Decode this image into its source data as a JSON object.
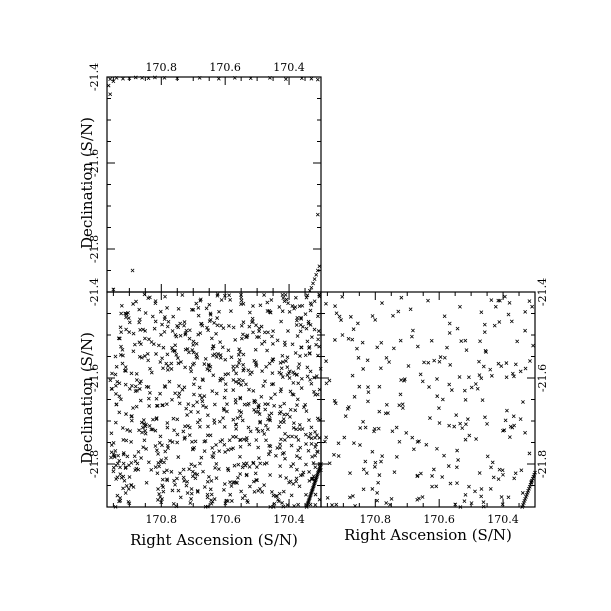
{
  "chart_data": [
    {
      "type": "scatter",
      "panel": "top-left",
      "xlim": [
        170.97,
        170.3
      ],
      "ylim": [
        -21.4,
        -21.9
      ],
      "xticks": [
        170.8,
        170.6,
        170.4
      ],
      "yticks": [
        -21.4,
        -21.6,
        -21.8
      ],
      "xtick_labels_shown": [
        "170.8",
        "170.6",
        "170.4"
      ],
      "ytick_labels_shown": [
        "-21.4",
        "-21.6",
        "-21.8"
      ],
      "xlabel": "",
      "ylabel": "Declination (S/N)",
      "marker": "x",
      "points": [
        [
          170.96,
          -21.405
        ],
        [
          170.95,
          -21.41
        ],
        [
          170.94,
          -21.402
        ],
        [
          170.92,
          -21.404
        ],
        [
          170.9,
          -21.403
        ],
        [
          170.88,
          -21.401
        ],
        [
          170.86,
          -21.402
        ],
        [
          170.84,
          -21.403
        ],
        [
          170.82,
          -21.401
        ],
        [
          170.79,
          -21.402
        ],
        [
          170.75,
          -21.403
        ],
        [
          170.68,
          -21.402
        ],
        [
          170.62,
          -21.404
        ],
        [
          170.57,
          -21.402
        ],
        [
          170.52,
          -21.403
        ],
        [
          170.46,
          -21.402
        ],
        [
          170.41,
          -21.405
        ],
        [
          170.36,
          -21.403
        ],
        [
          170.33,
          -21.404
        ],
        [
          170.31,
          -21.406
        ],
        [
          170.965,
          -21.42
        ],
        [
          170.96,
          -21.44
        ],
        [
          170.31,
          -21.72
        ],
        [
          170.89,
          -21.85
        ],
        [
          170.95,
          -21.894
        ],
        [
          170.31,
          -21.85
        ],
        [
          170.315,
          -21.86
        ],
        [
          170.32,
          -21.87
        ],
        [
          170.325,
          -21.88
        ],
        [
          170.33,
          -21.89
        ],
        [
          170.335,
          -21.897
        ],
        [
          170.305,
          -21.84
        ]
      ]
    },
    {
      "type": "scatter",
      "panel": "bottom-left",
      "xlim": [
        170.97,
        170.3
      ],
      "ylim": [
        -21.4,
        -21.9
      ],
      "xticks": [
        170.8,
        170.6,
        170.4
      ],
      "yticks": [
        -21.4,
        -21.6,
        -21.8
      ],
      "xtick_labels_shown": [
        "170.8",
        "170.6",
        "170.4"
      ],
      "ytick_labels_shown": [
        "-21.4",
        "-21.6",
        "-21.8"
      ],
      "xlabel": "Right Ascension (S/N)",
      "ylabel": "Declination (S/N)",
      "marker": "x",
      "random_points": {
        "count": 900,
        "x_range": [
          170.3,
          170.96
        ],
        "y_range": [
          -21.9,
          -21.405
        ],
        "seed": 7
      },
      "band_points": {
        "count": 30,
        "x_range": [
          170.3,
          170.345
        ],
        "y_range": [
          -21.9,
          -21.8
        ]
      },
      "points": []
    },
    {
      "type": "scatter",
      "panel": "bottom-right",
      "xlim": [
        170.97,
        170.3
      ],
      "ylim": [
        -21.4,
        -21.9
      ],
      "xticks": [
        170.8,
        170.6,
        170.4
      ],
      "yticks": [
        -21.4,
        -21.6,
        -21.8
      ],
      "xtick_labels_shown": [
        "170.8",
        "170.6",
        "170.4"
      ],
      "ytick_labels_shown": [
        "-21.4",
        "-21.6",
        "-21.8"
      ],
      "xlabel": "Right Ascension (S/N)",
      "ylabel": "",
      "marker": "x",
      "random_points": {
        "count": 260,
        "x_range": [
          170.3,
          170.96
        ],
        "y_range": [
          -21.9,
          -21.405
        ],
        "seed": 19
      },
      "band_points": {
        "count": 18,
        "x_range": [
          170.3,
          170.34
        ],
        "y_range": [
          -21.9,
          -21.82
        ]
      },
      "points": []
    }
  ]
}
